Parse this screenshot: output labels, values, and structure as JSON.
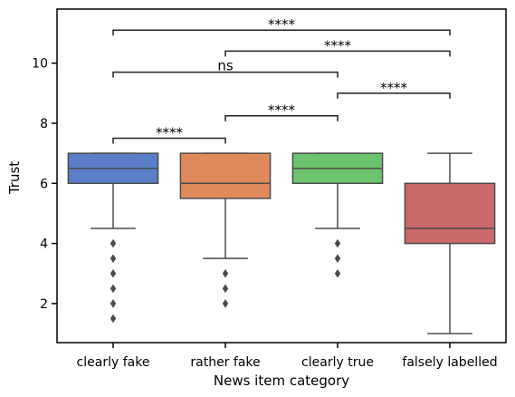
{
  "chart_data": {
    "type": "box",
    "title": "",
    "xlabel": "News item category",
    "ylabel": "Trust",
    "ylim": [
      0.7,
      11.8
    ],
    "yticks": [
      2,
      4,
      6,
      8,
      10
    ],
    "categories": [
      "clearly fake",
      "rather fake",
      "clearly true",
      "falsely labelled"
    ],
    "colors": [
      "#5a7ec8",
      "#e08a5c",
      "#6cc36d",
      "#cb6a6a"
    ],
    "boxes": [
      {
        "category": "clearly fake",
        "q1": 6.0,
        "median": 6.5,
        "q3": 7.0,
        "whisker_low": 4.5,
        "whisker_high": 7.0,
        "outliers": [
          4.0,
          3.5,
          3.0,
          2.5,
          2.0,
          1.5
        ]
      },
      {
        "category": "rather fake",
        "q1": 5.5,
        "median": 6.0,
        "q3": 7.0,
        "whisker_low": 3.5,
        "whisker_high": 7.0,
        "outliers": [
          3.0,
          2.5,
          2.0
        ]
      },
      {
        "category": "clearly true",
        "q1": 6.0,
        "median": 6.5,
        "q3": 7.0,
        "whisker_low": 4.5,
        "whisker_high": 7.0,
        "outliers": [
          4.0,
          3.5,
          3.0
        ]
      },
      {
        "category": "falsely labelled",
        "q1": 4.0,
        "median": 4.5,
        "q3": 6.0,
        "whisker_low": 1.0,
        "whisker_high": 7.0,
        "outliers": []
      }
    ],
    "annotations": [
      {
        "from": "clearly fake",
        "to": "rather fake",
        "y": 7.5,
        "label": "****"
      },
      {
        "from": "rather fake",
        "to": "clearly true",
        "y": 8.25,
        "label": "****"
      },
      {
        "from": "clearly true",
        "to": "falsely labelled",
        "y": 9.0,
        "label": "****"
      },
      {
        "from": "clearly fake",
        "to": "clearly true",
        "y": 9.7,
        "label": "ns"
      },
      {
        "from": "rather fake",
        "to": "falsely labelled",
        "y": 10.4,
        "label": "****"
      },
      {
        "from": "clearly fake",
        "to": "falsely labelled",
        "y": 11.1,
        "label": "****"
      }
    ]
  }
}
